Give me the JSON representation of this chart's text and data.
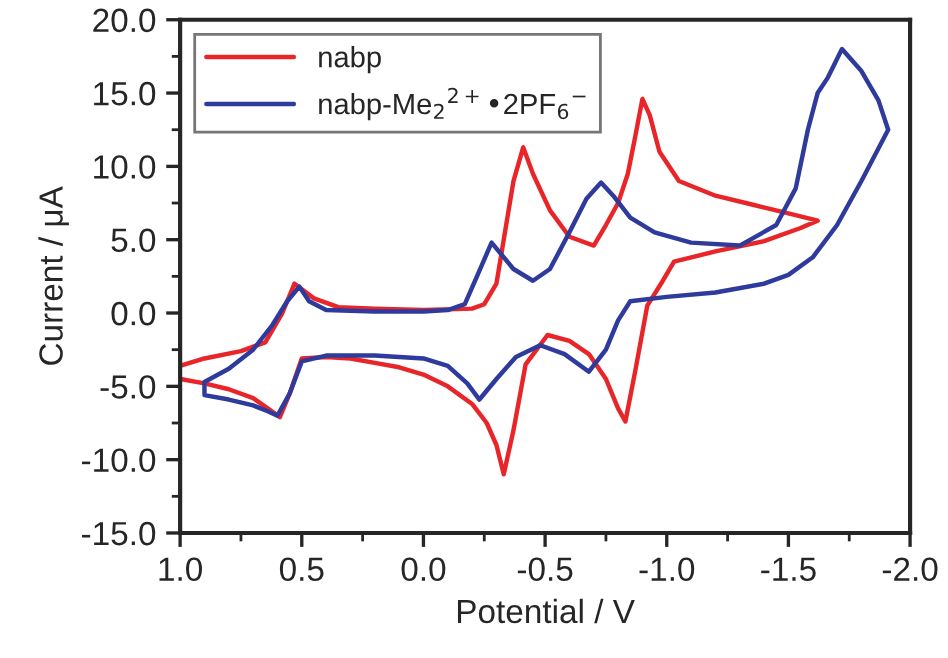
{
  "chart_data": {
    "type": "line",
    "xlabel": "Potential / V",
    "ylabel": "Current / μA",
    "xlim": [
      1.0,
      -2.0
    ],
    "ylim": [
      -15.0,
      20.0
    ],
    "xticks": [
      {
        "value": 1.0,
        "label": "1.0"
      },
      {
        "value": 0.5,
        "label": "0.5"
      },
      {
        "value": 0.0,
        "label": "0.0"
      },
      {
        "value": -0.5,
        "label": "-0.5"
      },
      {
        "value": -1.0,
        "label": "-1.0"
      },
      {
        "value": -1.5,
        "label": "-1.5"
      },
      {
        "value": -2.0,
        "label": "-2.0"
      }
    ],
    "yticks": [
      {
        "value": -15.0,
        "label": "-15.0"
      },
      {
        "value": -10.0,
        "label": "-10.0"
      },
      {
        "value": -5.0,
        "label": "-5.0"
      },
      {
        "value": 0.0,
        "label": "0.0"
      },
      {
        "value": 5.0,
        "label": "5.0"
      },
      {
        "value": 10.0,
        "label": "10.0"
      },
      {
        "value": 15.0,
        "label": "15.0"
      },
      {
        "value": 20.0,
        "label": "20.0"
      }
    ],
    "grid": false,
    "legend": "top left",
    "line_style": "solid",
    "marker": "none",
    "series": [
      {
        "name": "nabp",
        "color": "#e8262a",
        "x": [
          1.0,
          0.9,
          0.8,
          0.7,
          0.64,
          0.59,
          0.55,
          0.5,
          0.4,
          0.3,
          0.2,
          0.1,
          0.0,
          -0.1,
          -0.2,
          -0.26,
          -0.3,
          -0.33,
          -0.37,
          -0.42,
          -0.51,
          -0.6,
          -0.68,
          -0.75,
          -0.8,
          -0.83,
          -0.87,
          -0.92,
          -0.98,
          -1.03,
          -1.2,
          -1.4,
          -1.55,
          -1.62,
          -1.5,
          -1.35,
          -1.2,
          -1.05,
          -0.97,
          -0.93,
          -0.9,
          -0.87,
          -0.84,
          -0.8,
          -0.75,
          -0.7,
          -0.6,
          -0.52,
          -0.45,
          -0.41,
          -0.37,
          -0.33,
          -0.3,
          -0.25,
          -0.2,
          0.0,
          0.2,
          0.35,
          0.45,
          0.53,
          0.58,
          0.65,
          0.75,
          0.9,
          1.0
        ],
        "values": [
          -4.5,
          -4.8,
          -5.2,
          -5.8,
          -6.5,
          -7.1,
          -5.5,
          -3.1,
          -3.0,
          -3.1,
          -3.4,
          -3.7,
          -4.2,
          -5.0,
          -6.2,
          -7.5,
          -9.0,
          -11.0,
          -8.0,
          -3.5,
          -1.5,
          -1.9,
          -2.8,
          -4.5,
          -6.5,
          -7.4,
          -4.0,
          0.5,
          2.1,
          3.5,
          4.2,
          4.9,
          5.8,
          6.3,
          6.8,
          7.4,
          8.0,
          9.0,
          11.0,
          13.5,
          14.6,
          12.0,
          9.5,
          7.5,
          6.0,
          4.6,
          5.2,
          7.0,
          9.5,
          11.3,
          9.0,
          5.0,
          2.0,
          0.6,
          0.3,
          0.2,
          0.3,
          0.4,
          1.0,
          2.0,
          0.0,
          -2.0,
          -2.6,
          -3.1,
          -3.6
        ]
      },
      {
        "name": "nabp-Me$_{2}$$^{2+}$•2PF$_{6}$$^{−}$",
        "color": "#2e3a9c",
        "x": [
          0.9,
          0.8,
          0.7,
          0.64,
          0.6,
          0.55,
          0.5,
          0.4,
          0.2,
          0.0,
          -0.1,
          -0.18,
          -0.23,
          -0.3,
          -0.38,
          -0.48,
          -0.58,
          -0.68,
          -0.75,
          -0.8,
          -0.85,
          -1.0,
          -1.2,
          -1.4,
          -1.5,
          -1.6,
          -1.7,
          -1.8,
          -1.91,
          -1.87,
          -1.8,
          -1.72,
          -1.66,
          -1.62,
          -1.58,
          -1.53,
          -1.45,
          -1.3,
          -1.1,
          -0.95,
          -0.85,
          -0.78,
          -0.73,
          -0.67,
          -0.6,
          -0.52,
          -0.45,
          -0.37,
          -0.28,
          -0.22,
          -0.17,
          -0.1,
          0.0,
          0.2,
          0.4,
          0.47,
          0.51,
          0.56,
          0.62,
          0.7,
          0.8,
          0.9,
          0.9
        ],
        "values": [
          -5.6,
          -5.9,
          -6.3,
          -6.7,
          -7.0,
          -5.5,
          -3.3,
          -2.9,
          -2.9,
          -3.1,
          -3.6,
          -4.8,
          -5.9,
          -4.5,
          -3.0,
          -2.2,
          -2.8,
          -4.0,
          -2.5,
          -0.5,
          0.8,
          1.1,
          1.4,
          2.0,
          2.6,
          3.8,
          6.0,
          9.0,
          12.5,
          14.5,
          16.5,
          18.0,
          16.0,
          15.0,
          12.5,
          8.5,
          6.0,
          4.6,
          4.8,
          5.5,
          6.5,
          8.0,
          8.9,
          7.8,
          5.5,
          3.0,
          2.2,
          3.0,
          4.8,
          2.5,
          0.6,
          0.2,
          0.1,
          0.1,
          0.2,
          0.8,
          1.8,
          0.8,
          -0.8,
          -2.5,
          -3.8,
          -4.7,
          -5.5
        ]
      }
    ]
  }
}
